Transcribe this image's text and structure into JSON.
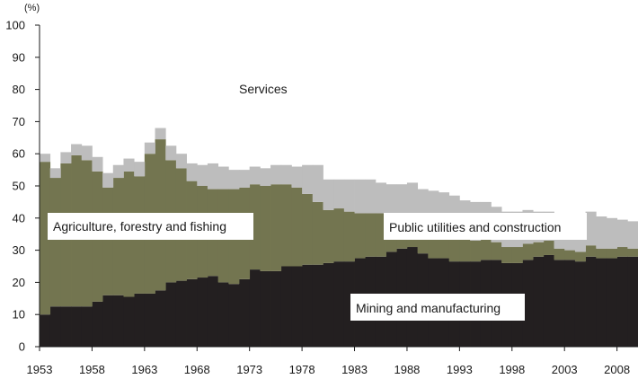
{
  "chart_data": {
    "type": "area",
    "title": "",
    "xlabel": "",
    "ylabel": "",
    "y_unit": "(%)",
    "ylim": [
      0,
      100
    ],
    "yticks": [
      0,
      10,
      20,
      30,
      40,
      50,
      60,
      70,
      80,
      90,
      100
    ],
    "xlim": [
      1953,
      2010
    ],
    "xticks": [
      "1953",
      "1958",
      "1963",
      "1968",
      "1973",
      "1978",
      "1983",
      "1988",
      "1993",
      "1998",
      "2003",
      "2008"
    ],
    "years": [
      1953,
      1954,
      1955,
      1956,
      1957,
      1958,
      1959,
      1960,
      1961,
      1962,
      1963,
      1964,
      1965,
      1966,
      1967,
      1968,
      1969,
      1970,
      1971,
      1972,
      1973,
      1974,
      1975,
      1976,
      1977,
      1978,
      1979,
      1980,
      1981,
      1982,
      1983,
      1984,
      1985,
      1986,
      1987,
      1988,
      1989,
      1990,
      1991,
      1992,
      1993,
      1994,
      1995,
      1996,
      1997,
      1998,
      1999,
      2000,
      2001,
      2002,
      2003,
      2004,
      2005,
      2006,
      2007,
      2008,
      2009
    ],
    "stacked": true,
    "series": [
      {
        "name": "Mining and manufacturing",
        "color": "#231f20",
        "values": [
          10,
          12.5,
          12.5,
          12.5,
          12.5,
          14,
          16,
          16,
          15.5,
          16.5,
          16.5,
          17.5,
          20,
          20.5,
          21,
          21.5,
          22,
          20,
          19.5,
          21,
          24,
          23.5,
          23.5,
          25,
          25,
          25.5,
          25.5,
          26,
          26.5,
          26.5,
          27.5,
          28,
          28,
          29.5,
          30.5,
          31,
          29,
          27.5,
          27.5,
          26.5,
          26.5,
          26.5,
          27,
          27,
          26,
          26,
          27,
          28,
          28.5,
          27,
          27,
          26.5,
          28,
          27.5,
          27.5,
          28,
          28
        ]
      },
      {
        "name": "Agriculture, forestry and fishing",
        "color": "#737550",
        "values": [
          47.5,
          40,
          44.5,
          47,
          45.5,
          40.5,
          33.5,
          36.5,
          39,
          36.5,
          43.5,
          47,
          38,
          35,
          30.5,
          28.5,
          27,
          29,
          29.5,
          28.5,
          26.5,
          26.5,
          27,
          25.5,
          24.5,
          22,
          19.5,
          16.5,
          16.5,
          15.5,
          14,
          13.5,
          13.5,
          11.5,
          10.5,
          9,
          8,
          7.5,
          7,
          7.5,
          7,
          6.5,
          6.5,
          5.5,
          5,
          5,
          5,
          4.5,
          4.5,
          3.5,
          3,
          3,
          3.5,
          3,
          3,
          3,
          2.5
        ]
      },
      {
        "name": "Public utilities and construction",
        "color": "#6b6e49",
        "values": [
          0,
          0,
          0,
          0,
          0,
          0,
          0,
          0,
          0,
          0,
          0,
          0,
          0,
          0,
          0,
          0,
          0,
          0,
          0,
          0,
          0,
          0,
          0,
          0,
          0,
          0,
          0,
          0,
          0,
          0,
          0,
          0,
          0,
          0,
          0,
          0,
          0,
          0,
          0,
          0,
          0,
          0,
          0,
          0,
          0,
          0,
          0,
          0,
          0,
          0,
          0,
          0,
          0,
          0,
          0,
          0,
          0
        ]
      },
      {
        "name": "Services",
        "color": "#bdbdbd",
        "values": [
          2.5,
          3,
          3.5,
          3.5,
          4.5,
          4.5,
          4.5,
          4,
          4,
          4.5,
          3.5,
          3.5,
          4.5,
          4.5,
          5.5,
          6.5,
          8,
          7,
          6,
          5.5,
          5.5,
          5.5,
          6,
          6,
          6.5,
          9,
          11.5,
          9.5,
          9,
          10,
          10.5,
          10.5,
          9.5,
          9.5,
          9.5,
          11,
          12,
          13.5,
          13.5,
          13,
          12,
          12,
          11.5,
          11,
          11,
          11,
          10.5,
          9.5,
          9,
          11,
          11,
          11.5,
          10.5,
          10,
          9.5,
          8.5,
          8.5
        ]
      }
    ],
    "annotations": {
      "services": "Services",
      "agriculture": "Agriculture, forestry and fishing",
      "utilities": "Public utilities and construction",
      "mining": "Mining and manufacturing"
    }
  }
}
